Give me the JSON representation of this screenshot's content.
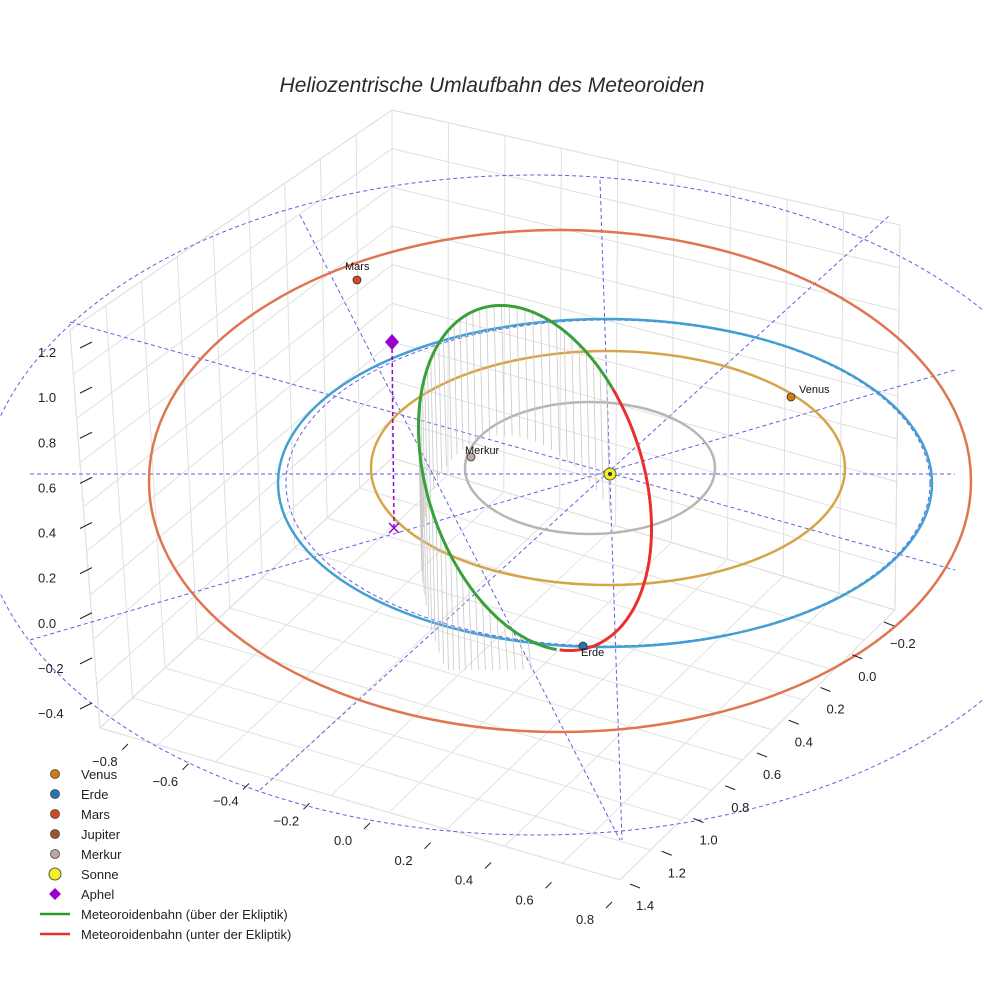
{
  "chart_data": {
    "type": "line3d",
    "title": "Heliozentrische Umlaufbahn des Meteoroiden",
    "axes": {
      "x": {
        "ticks": [
          -0.8,
          -0.6,
          -0.4,
          -0.2,
          0.0,
          0.2,
          0.4,
          0.6,
          0.8
        ],
        "tick_labels": [
          "−0.8",
          "−0.6",
          "−0.4",
          "−0.2",
          "0.0",
          "0.2",
          "0.4",
          "0.6",
          "0.8"
        ]
      },
      "y": {
        "ticks": [
          -0.2,
          0.0,
          0.2,
          0.4,
          0.6,
          0.8,
          1.0,
          1.2,
          1.4
        ],
        "tick_labels": [
          "−0.2",
          "0.0",
          "0.2",
          "0.4",
          "0.6",
          "0.8",
          "1.0",
          "1.2",
          "1.4"
        ]
      },
      "z": {
        "ticks": [
          -0.4,
          -0.2,
          0.0,
          0.2,
          0.4,
          0.6,
          0.8,
          1.0,
          1.2
        ],
        "tick_labels": [
          "−0.4",
          "−0.2",
          "0.0",
          "0.2",
          "0.4",
          "0.6",
          "0.8",
          "1.0",
          "1.2"
        ]
      }
    },
    "grid": true,
    "legend_position": "bottom-left",
    "planet_orbits": [
      {
        "name": "Merkur",
        "radius": 0.39,
        "color": "#b8b0ac"
      },
      {
        "name": "Venus",
        "radius": 0.72,
        "color": "#d4a040"
      },
      {
        "name": "Erde",
        "radius": 1.0,
        "color": "#3a9bd0"
      },
      {
        "name": "Mars",
        "radius": 1.52,
        "color": "#dd6e48"
      }
    ],
    "planets": [
      {
        "name": "Venus",
        "label": "Venus",
        "x": 0.58,
        "y": 0.43,
        "z": 0.0,
        "color": "#d07a10"
      },
      {
        "name": "Erde",
        "label": "Erde",
        "x": -0.08,
        "y": -1.0,
        "z": 0.0,
        "color": "#1f77b4"
      },
      {
        "name": "Mars",
        "label": "Mars",
        "x": -0.72,
        "y": 1.34,
        "z": 0.0,
        "color": "#d44a1c"
      },
      {
        "name": "Merkur",
        "label": "Merkur",
        "x": -0.31,
        "y": 0.24,
        "z": 0.0,
        "color": "#bca89e"
      }
    ],
    "sun": {
      "name": "Sonne",
      "x": 0.0,
      "y": 0.0,
      "z": 0.0,
      "color": "#f4f020"
    },
    "aphel": {
      "name": "Aphel",
      "x": -0.58,
      "y": 0.36,
      "z": 0.72,
      "color": "#9900cc"
    },
    "meteoroid_orbit": {
      "above": {
        "name": "Meteoroidenbahn (über der Ekliptik)",
        "color": "#3aa03a"
      },
      "below": {
        "name": "Meteoroidenbahn (unter der Ekliptik)",
        "color": "#e8302c"
      }
    },
    "legend": [
      {
        "label": "Venus",
        "symbol": "dot",
        "color": "#d07a10"
      },
      {
        "label": "Erde",
        "symbol": "dot",
        "color": "#1f77b4"
      },
      {
        "label": "Mars",
        "symbol": "dot",
        "color": "#d44a1c"
      },
      {
        "label": "Jupiter",
        "symbol": "dot",
        "color": "#a0522d"
      },
      {
        "label": "Merkur",
        "symbol": "dot",
        "color": "#bca89e"
      },
      {
        "label": "Sonne",
        "symbol": "sun",
        "color": "#f4f020"
      },
      {
        "label": "Aphel",
        "symbol": "diamond",
        "color": "#9900cc"
      },
      {
        "label": "Meteoroidenbahn (über der Ekliptik)",
        "symbol": "line",
        "color": "#2a9a2a"
      },
      {
        "label": "Meteoroidenbahn (unter der Ekliptik)",
        "symbol": "line",
        "color": "#e8302c"
      }
    ]
  }
}
